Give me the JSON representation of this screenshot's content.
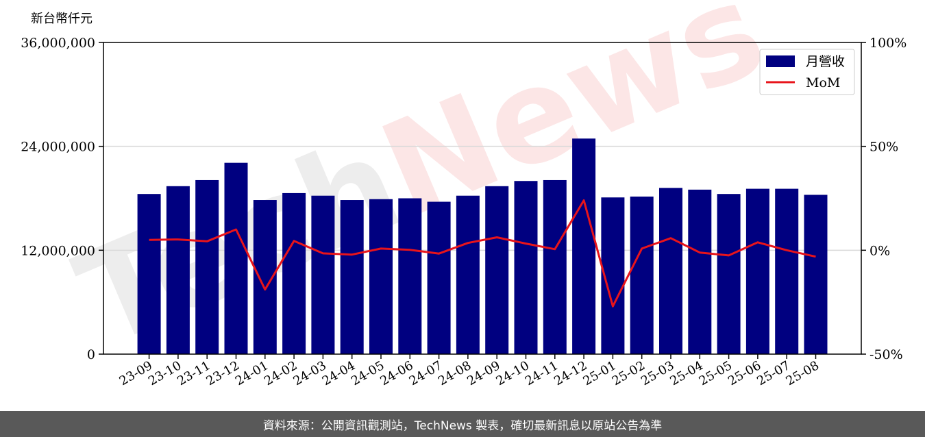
{
  "chart_data": {
    "type": "bar",
    "unit_label": "新台幣仟元",
    "categories": [
      "23-09",
      "23-10",
      "23-11",
      "23-12",
      "24-01",
      "24-02",
      "24-03",
      "24-04",
      "24-05",
      "24-06",
      "24-07",
      "24-08",
      "24-09",
      "24-10",
      "24-11",
      "24-12",
      "25-01",
      "25-02",
      "25-03",
      "25-04",
      "25-05",
      "25-06",
      "25-07",
      "25-08"
    ],
    "series": [
      {
        "name": "月營收",
        "axis": "left",
        "color": "#000080",
        "values": [
          18500000,
          19400000,
          20100000,
          22100000,
          17800000,
          18600000,
          18300000,
          17800000,
          17900000,
          18000000,
          17600000,
          18300000,
          19400000,
          20000000,
          20100000,
          24900000,
          18100000,
          18200000,
          19200000,
          19000000,
          18500000,
          19100000,
          19100000,
          18400000
        ]
      },
      {
        "name": "MoM",
        "axis": "right",
        "color": "#e8141b",
        "values": [
          5,
          5.2,
          4.3,
          10,
          -18.9,
          4.5,
          -1.5,
          -2.1,
          0.8,
          0.2,
          -1.6,
          3.5,
          6.2,
          3.2,
          0.5,
          24,
          -27,
          0.8,
          5.8,
          -1.1,
          -2.5,
          3.8,
          0,
          -3.1
        ]
      }
    ],
    "y_left": {
      "min": 0,
      "max": 36000000,
      "ticks": [
        0,
        12000000,
        24000000,
        36000000
      ],
      "tick_labels": [
        "0",
        "12,000,000",
        "24,000,000",
        "36,000,000"
      ]
    },
    "y_right": {
      "min": -50,
      "max": 100,
      "ticks": [
        -50,
        0,
        50,
        100
      ],
      "tick_labels": [
        "-50%",
        "0%",
        "50%",
        "100%"
      ]
    },
    "grid": "horizontal",
    "legend_position": "top-right",
    "watermark": "TechNews"
  },
  "footer": {
    "text": "資料來源：公開資訊觀測站，TechNews 製表，確切最新訊息以原站公告為準"
  }
}
